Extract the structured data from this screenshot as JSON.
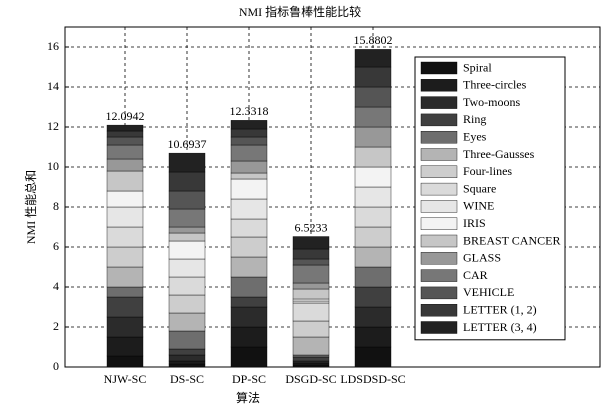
{
  "chart_data": {
    "type": "stacked_bar",
    "title": "NMI 指标鲁棒性能比较",
    "xlabel": "算法",
    "ylabel": "NMI 性能总和",
    "categories": [
      "NJW-SC",
      "DS-SC",
      "DP-SC",
      "DSGD-SC",
      "LDSDSD-SC"
    ],
    "totals": [
      12.0942,
      10.6937,
      12.3318,
      6.5233,
      15.8802
    ],
    "ylim": [
      0,
      17
    ],
    "yticks": [
      0,
      2,
      4,
      6,
      8,
      10,
      12,
      14,
      16
    ],
    "grid": true,
    "legend": "right",
    "series": [
      {
        "name": "Spiral",
        "color": "#111111",
        "values": [
          0.55,
          0.15,
          1.0,
          0.1,
          1.0
        ]
      },
      {
        "name": "Three-circles",
        "color": "#1c1c1c",
        "values": [
          0.95,
          0.15,
          1.0,
          0.1,
          1.0
        ]
      },
      {
        "name": "Two-moons",
        "color": "#2b2b2b",
        "values": [
          1.0,
          0.3,
          1.0,
          0.1,
          1.0
        ]
      },
      {
        "name": "Ring",
        "color": "#404040",
        "values": [
          1.0,
          0.3,
          0.5,
          0.2,
          1.0
        ]
      },
      {
        "name": "Eyes",
        "color": "#6e6e6e",
        "values": [
          0.5,
          0.9,
          1.0,
          0.1,
          1.0
        ]
      },
      {
        "name": "Three-Gausses",
        "color": "#b4b4b4",
        "values": [
          1.0,
          0.9,
          1.0,
          0.9,
          1.0
        ]
      },
      {
        "name": "Four-lines",
        "color": "#cdcdcd",
        "values": [
          1.0,
          0.9,
          1.0,
          0.8,
          1.0
        ]
      },
      {
        "name": "Square",
        "color": "#dadada",
        "values": [
          1.0,
          0.9,
          0.9,
          0.9,
          1.0
        ]
      },
      {
        "name": "WINE",
        "color": "#e6e6e6",
        "values": [
          1.0,
          0.9,
          1.0,
          0.1,
          1.0
        ]
      },
      {
        "name": "IRIS",
        "color": "#f3f3f3",
        "values": [
          0.8,
          0.9,
          1.0,
          0.1,
          1.0
        ]
      },
      {
        "name": "BREAST CANCER",
        "color": "#c6c6c6",
        "values": [
          1.0,
          0.4,
          0.3,
          0.5,
          1.0
        ]
      },
      {
        "name": "GLASS",
        "color": "#989898",
        "values": [
          0.6,
          0.3,
          0.6,
          0.3,
          1.0
        ]
      },
      {
        "name": "CAR",
        "color": "#777777",
        "values": [
          0.7,
          0.9,
          0.8,
          0.9,
          1.0
        ]
      },
      {
        "name": "VEHICLE",
        "color": "#555555",
        "values": [
          0.4,
          0.9,
          0.4,
          0.3,
          1.0
        ]
      },
      {
        "name": "LETTER (1, 2)",
        "color": "#383838",
        "values": [
          0.3,
          0.95,
          0.4,
          0.5,
          1.0
        ]
      },
      {
        "name": "LETTER (3, 4)",
        "color": "#222222",
        "values": [
          0.2942,
          0.9437,
          0.4318,
          0.6233,
          0.8802
        ]
      }
    ]
  }
}
